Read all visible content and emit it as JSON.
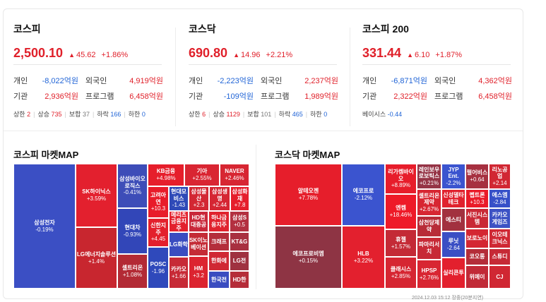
{
  "indices": [
    {
      "name": "코스피",
      "value": "2,500.10",
      "change": "45.62",
      "percent": "+1.86%",
      "flows": [
        {
          "l1": "개인",
          "v1": "-8,022억원",
          "c1": "neg",
          "l2": "외국인",
          "v2": "4,919억원",
          "c2": "pos"
        },
        {
          "l1": "기관",
          "v1": "2,936억원",
          "c1": "pos",
          "l2": "프로그램",
          "v2": "6,458억원",
          "c2": "pos"
        }
      ],
      "breadth": [
        {
          "label": "상한",
          "value": "2",
          "c": "pos"
        },
        {
          "label": "상승",
          "value": "735",
          "c": "pos"
        },
        {
          "label": "보합",
          "value": "37",
          "c": "flat"
        },
        {
          "label": "하락",
          "value": "166",
          "c": "neg"
        },
        {
          "label": "하한",
          "value": "0",
          "c": "neg"
        }
      ]
    },
    {
      "name": "코스닥",
      "value": "690.80",
      "change": "14.96",
      "percent": "+2.21%",
      "flows": [
        {
          "l1": "개인",
          "v1": "-2,223억원",
          "c1": "neg",
          "l2": "외국인",
          "v2": "2,237억원",
          "c2": "pos"
        },
        {
          "l1": "기관",
          "v1": "-109억원",
          "c1": "neg",
          "l2": "프로그램",
          "v2": "1,989억원",
          "c2": "pos"
        }
      ],
      "breadth": [
        {
          "label": "상한",
          "value": "6",
          "c": "pos"
        },
        {
          "label": "상승",
          "value": "1129",
          "c": "pos"
        },
        {
          "label": "보합",
          "value": "101",
          "c": "flat"
        },
        {
          "label": "하락",
          "value": "465",
          "c": "neg"
        },
        {
          "label": "하한",
          "value": "0",
          "c": "neg"
        }
      ]
    },
    {
      "name": "코스피 200",
      "value": "331.44",
      "change": "6.10",
      "percent": "+1.87%",
      "flows": [
        {
          "l1": "개인",
          "v1": "-6,871억원",
          "c1": "neg",
          "l2": "외국인",
          "v2": "4,362억원",
          "c2": "pos"
        },
        {
          "l1": "기관",
          "v1": "2,322억원",
          "c1": "pos",
          "l2": "프로그램",
          "v2": "6,458억원",
          "c2": "pos"
        }
      ],
      "basis": {
        "label": "베이시스",
        "value": "-0.44"
      }
    }
  ],
  "kospi_map": {
    "title": "코스피 마켓MAP",
    "tiles": [
      {
        "name": "삼성전자",
        "chg": "-0.19%",
        "color": "#3b4fc4"
      },
      {
        "name": "SK하이닉스",
        "chg": "+3.59%",
        "color": "#e3202e"
      },
      {
        "name": "LG에너지솔루션",
        "chg": "+1.4%",
        "color": "#c8262f"
      },
      {
        "name": "삼성바이오로직스",
        "chg": "-0.41%",
        "color": "#3d4db8"
      },
      {
        "name": "현대차",
        "chg": "-0.93%",
        "color": "#3246b8"
      },
      {
        "name": "셀트리온",
        "chg": "+1.08%",
        "color": "#b32a35"
      },
      {
        "name": "KB금융",
        "chg": "+4.98%",
        "color": "#e61e2b"
      },
      {
        "name": "기아",
        "chg": "+2.55%",
        "color": "#d92532"
      },
      {
        "name": "NAVER",
        "chg": "+2.46%",
        "color": "#d72632"
      },
      {
        "name": "고려아연",
        "chg": "+10.3",
        "color": "#e81c2a"
      },
      {
        "name": "현대모비스",
        "chg": "-1.43",
        "color": "#2f4ab8"
      },
      {
        "name": "삼성물산",
        "chg": "+2.3",
        "color": "#d32733"
      },
      {
        "name": "삼성생명",
        "chg": "+2.44",
        "color": "#d52633"
      },
      {
        "name": "삼성화재",
        "chg": "+7.8",
        "color": "#e51f2c"
      },
      {
        "name": "메리츠금융지주",
        "chg": "",
        "color": "#e3212d"
      },
      {
        "name": "HD현대중공",
        "chg": "",
        "color": "#c9283a"
      },
      {
        "name": "하나금융지주",
        "chg": "",
        "color": "#e0232e"
      },
      {
        "name": "삼성S",
        "chg": "+0.5",
        "color": "#b33040"
      },
      {
        "name": "신한지주",
        "chg": "+4.45",
        "color": "#e3202c"
      },
      {
        "name": "LG화학",
        "chg": "",
        "color": "#3a4cc0"
      },
      {
        "name": "SK이노베이션",
        "chg": "",
        "color": "#c42b36"
      },
      {
        "name": "크래프",
        "chg": "",
        "color": "#b42e3b"
      },
      {
        "name": "KT&G",
        "chg": "",
        "color": "#a83040"
      },
      {
        "name": "한화에",
        "chg": "",
        "color": "#d02834"
      },
      {
        "name": "LG전",
        "chg": "",
        "color": "#9f3240"
      },
      {
        "name": "POSC",
        "chg": "-1.96",
        "color": "#2f49bb"
      },
      {
        "name": "카카오",
        "chg": "+1.66",
        "color": "#c72a36"
      },
      {
        "name": "HM",
        "chg": "+3.2",
        "color": "#dc2430"
      },
      {
        "name": "한국전",
        "chg": "",
        "color": "#3a4cc0"
      },
      {
        "name": "HD한",
        "chg": "",
        "color": "#b52d39"
      }
    ]
  },
  "kosdaq_map": {
    "title": "코스닥 마켓MAP",
    "tiles": [
      {
        "name": "알테오젠",
        "chg": "+7.78%",
        "color": "#e61e2b"
      },
      {
        "name": "에코프로비엠",
        "chg": "+0.15%",
        "color": "#8e3444"
      },
      {
        "name": "에코프로",
        "chg": "-2.12%",
        "color": "#3b54cf"
      },
      {
        "name": "HLB",
        "chg": "+3.22%",
        "color": "#e3202e"
      },
      {
        "name": "리가켐바이오",
        "chg": "+8.89%",
        "color": "#e71d2b"
      },
      {
        "name": "엔켐",
        "chg": "+18.46%",
        "color": "#ee1a28"
      },
      {
        "name": "휴젤",
        "chg": "+1.57%",
        "color": "#c42a36"
      },
      {
        "name": "클래시스",
        "chg": "+2.85%",
        "color": "#d62632"
      },
      {
        "name": "레인보우로보틱스",
        "chg": "+0.21%",
        "color": "#953446"
      },
      {
        "name": "JYP Ent.",
        "chg": "-2.2%",
        "color": "#3b54cf"
      },
      {
        "name": "펄어비스",
        "chg": "+0.64",
        "color": "#a63040"
      },
      {
        "name": "리노공업",
        "chg": "+2.14",
        "color": "#d12733"
      },
      {
        "name": "셀트리온제약",
        "chg": "+2.67%",
        "color": "#d72632"
      },
      {
        "name": "신성델타테크",
        "chg": "",
        "color": "#e0222e"
      },
      {
        "name": "펩트론",
        "chg": "+10.3",
        "color": "#ea1b29"
      },
      {
        "name": "에스엠",
        "chg": "-2.84",
        "color": "#3650c8"
      },
      {
        "name": "삼천당제약",
        "chg": "",
        "color": "#b82c38"
      },
      {
        "name": "에스티",
        "chg": "",
        "color": "#a2313f"
      },
      {
        "name": "서진시스템",
        "chg": "",
        "color": "#c92936"
      },
      {
        "name": "카카오게임즈",
        "chg": "",
        "color": "#3c52c4"
      },
      {
        "name": "보로노이",
        "chg": "",
        "color": "#d42632"
      },
      {
        "name": "이오테크닉스",
        "chg": "",
        "color": "#cf2834"
      },
      {
        "name": "파마리서치",
        "chg": "",
        "color": "#c72a36"
      },
      {
        "name": "루닛",
        "chg": "-2.64",
        "color": "#3a4ec4"
      },
      {
        "name": "코오롱",
        "chg": "",
        "color": "#b42d39"
      },
      {
        "name": "스튜디",
        "chg": "",
        "color": "#c62a36"
      },
      {
        "name": "HPSP",
        "chg": "+2.76%",
        "color": "#d82632"
      },
      {
        "name": "실리콘투",
        "chg": "",
        "color": "#e3202d"
      },
      {
        "name": "위메이",
        "chg": "",
        "color": "#c12a37"
      },
      {
        "name": "CJ",
        "chg": "",
        "color": "#d02733"
      }
    ]
  },
  "timestamp": "2024.12.03 15:12 장중(20분지연)"
}
